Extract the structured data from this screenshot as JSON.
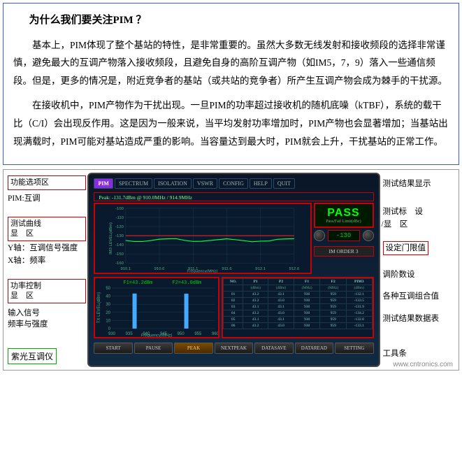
{
  "doc": {
    "title": "为什么我们要关注PIM ？",
    "para1": "基本上，PIM体现了整个基站的特性，是非常重要的。虽然大多数无线发射和接收频段的选择非常谨慎，避免最大的互调产物落入接收频段，且避免自身的高阶互调产物（如IM5，7，9）落入一些通信频段。但是，更多的情况是，附近竞争者的基站（或共站的竞争者）所产生互调产物会成为棘手的干扰源。",
    "para2": "在接收机中，PIM产物作为干扰出现。一旦PIM的功率超过接收机的随机底噪（kTBF），系统的载干比（C/I）会出现反作用。这是因为一般来说，当平均发射功率增加时，PIM产物也会显著增加；当基站出现满载时，PIM可能对基站造成严重的影响。当容量达到最大时，PIM就会上升，干扰基站的正常工作。"
  },
  "leftLabels": {
    "funcArea": "功能选项区",
    "pimMode": "PIM:互调",
    "curveArea": "测试曲线\n显    区",
    "yAxis": "Y轴：互调信号强度",
    "xAxis": "X轴：频率",
    "powerArea": "功率控制\n显    区",
    "inputSignal": "输入信号\n频率与强度",
    "deviceName": "紫光互调仪"
  },
  "rightLabels": {
    "resultDisplay": "测试结果显示",
    "markerArea": "测试标    设\n/显    区",
    "threshold": "设定门限值",
    "orderSet": "调阶数设",
    "combValues": "各种互调组合值",
    "dataTable": "测试结果数据表",
    "toolbar": "工具条"
  },
  "device": {
    "menu": [
      "PIM",
      "SPECTRUM",
      "ISOLATION",
      "VSWR",
      "CONFIG",
      "HELP",
      "QUIT"
    ],
    "peakInfo": "Peak: -131.7dBm @ 910.0MHz / 914.9MHz",
    "pass": "PASS",
    "passSub": "Pass/Fail Limit(dBc)",
    "threshold": "-130",
    "imOrder": "IM ORDER 3",
    "f1": "F1=43.2dBm",
    "f2": "F2=43.0dBm",
    "mainChart": {
      "ylabel": "IM3 LEVEL(dBm)",
      "ymin": -160,
      "ymax": -100,
      "ystep": 10,
      "xlabel": "Frequency(MHz)",
      "xticks": [
        "910.1",
        "910.6",
        "911.1",
        "911.6",
        "912.1",
        "912.6"
      ],
      "line_y": -135,
      "line_color": "#00ff44",
      "threshold_y": -130,
      "threshold_color": "#ff2222"
    },
    "smallChart": {
      "ylabel": "TX LEVEL(dBm)",
      "ymin": 0,
      "ymax": 50,
      "ystep": 10,
      "xlabel": "Frequency(MHz)",
      "xticks": [
        "930",
        "935",
        "940",
        "945",
        "950",
        "955",
        "960"
      ],
      "bars": [
        {
          "x": 0.22,
          "h": 43.2,
          "color": "#44aaff"
        },
        {
          "x": 0.72,
          "h": 43.0,
          "color": "#44aaff"
        }
      ]
    },
    "table": {
      "headers": [
        "NO.",
        "P1",
        "P2",
        "F1",
        "F2",
        "PIM3"
      ],
      "units": [
        "",
        "(dBm)",
        "(dBm)",
        "(MHz)",
        "(MHz)",
        "(dBm)"
      ],
      "rows": [
        [
          "01",
          "43.2",
          "43.1",
          "930",
          "959",
          "-132.1"
        ],
        [
          "02",
          "43.2",
          "43.0",
          "930",
          "959",
          "-133.5"
        ],
        [
          "03",
          "43.1",
          "43.1",
          "930",
          "959",
          "-131.9"
        ],
        [
          "04",
          "43.2",
          "43.0",
          "930",
          "959",
          "-134.2"
        ],
        [
          "05",
          "43.1",
          "43.1",
          "930",
          "959",
          "-132.8"
        ],
        [
          "06",
          "43.2",
          "43.0",
          "930",
          "959",
          "-133.1"
        ]
      ]
    },
    "tools": [
      "START",
      "PAUSE",
      "PEAK",
      "NEXTPEAK",
      "DATASAVE",
      "DATAREAD",
      "SETTING"
    ]
  },
  "watermark": "www.cntronics.com"
}
